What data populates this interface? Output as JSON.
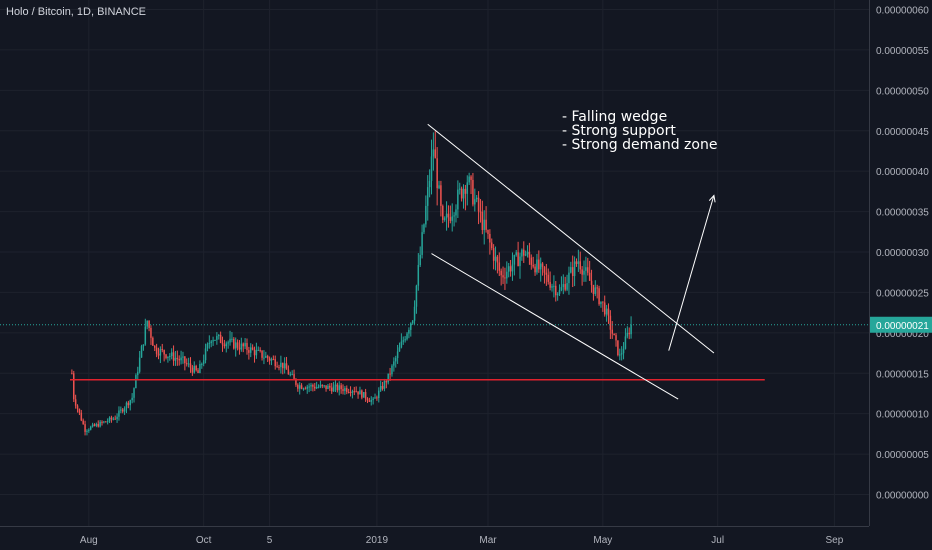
{
  "chart_data": {
    "type": "candlestick",
    "title": "Holo / Bitcoin, 1D, BINANCE",
    "ylim": [
      0,
      6e-07
    ],
    "y_ticks": [
      "0.00000000",
      "0.00000005",
      "0.00000010",
      "0.00000015",
      "0.00000020",
      "0.00000025",
      "0.00000030",
      "0.00000035",
      "0.00000040",
      "0.00000045",
      "0.00000050",
      "0.00000055",
      "0.00000060"
    ],
    "x_ticks": [
      "Aug",
      "Oct",
      "5",
      "2019",
      "Mar",
      "May",
      "Jul",
      "Sep"
    ],
    "last_price_label": "0.00000021",
    "annotations": [
      "- Falling wedge",
      "- Strong support",
      "- Strong demand zone"
    ],
    "colors": {
      "up": "#26a69a",
      "down": "#ef5350",
      "support": "#e0222d",
      "grid": "#1e222d",
      "price_line": "#26a69a"
    },
    "price_segments": [
      [
        "2018-07-23",
        1.5e-07
      ],
      [
        "2018-07-24",
        1.2e-07
      ],
      [
        "2018-07-30",
        8e-08
      ],
      [
        "2018-08-15",
        9.5e-08
      ],
      [
        "2018-08-24",
        1.2e-07
      ],
      [
        "2018-09-01",
        2.15e-07
      ],
      [
        "2018-09-05",
        1.8e-07
      ],
      [
        "2018-09-20",
        1.65e-07
      ],
      [
        "2018-09-28",
        1.5e-07
      ],
      [
        "2018-10-05",
        1.95e-07
      ],
      [
        "2018-10-25",
        1.8e-07
      ],
      [
        "2018-11-12",
        1.6e-07
      ],
      [
        "2018-11-20",
        1.35e-07
      ],
      [
        "2018-12-20",
        1.3e-07
      ],
      [
        "2018-12-30",
        1.15e-07
      ],
      [
        "2019-01-07",
        1.45e-07
      ],
      [
        "2019-01-20",
        2.2e-07
      ],
      [
        "2019-01-31",
        4.3e-07
      ],
      [
        "2019-02-05",
        3.3e-07
      ],
      [
        "2019-02-18",
        3.9e-07
      ],
      [
        "2019-03-08",
        2.7e-07
      ],
      [
        "2019-03-20",
        3e-07
      ],
      [
        "2019-04-08",
        2.5e-07
      ],
      [
        "2019-04-18",
        2.9e-07
      ],
      [
        "2019-05-02",
        2.3e-07
      ],
      [
        "2019-05-10",
        1.7e-07
      ],
      [
        "2019-05-16",
        2.1e-07
      ]
    ],
    "support_line": {
      "from": "2018-07-22",
      "to": "2019-07-26",
      "value": 1.42e-07
    },
    "wedge_upper": {
      "from": [
        "2019-01-28",
        4.58e-07
      ],
      "to": [
        "2019-06-29",
        1.75e-07
      ]
    },
    "wedge_lower": {
      "from": [
        "2019-01-30",
        2.98e-07
      ],
      "to": [
        "2019-06-10",
        1.18e-07
      ]
    },
    "projection_arrow": {
      "from": [
        "2019-06-05",
        1.78e-07
      ],
      "to": [
        "2019-06-29",
        3.7e-07
      ]
    }
  }
}
